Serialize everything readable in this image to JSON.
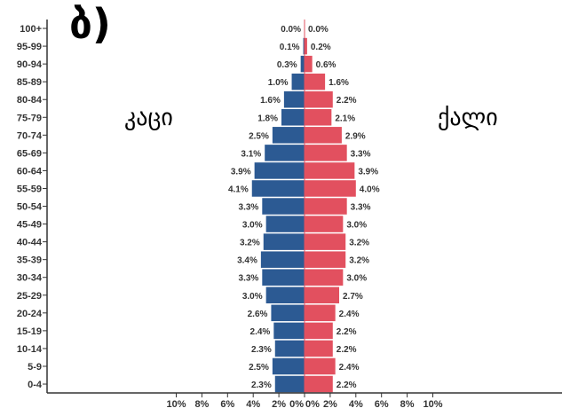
{
  "panel_label": "ბ)",
  "male_label": "კაცი",
  "female_label": "ქალი",
  "chart_data": {
    "type": "bar",
    "orientation": "horizontal-pyramid",
    "categories": [
      "100+",
      "95-99",
      "90-94",
      "85-89",
      "80-84",
      "75-79",
      "70-74",
      "65-69",
      "60-64",
      "55-59",
      "50-54",
      "45-49",
      "40-44",
      "35-39",
      "30-34",
      "25-29",
      "20-24",
      "15-19",
      "10-14",
      "5-9",
      "0-4"
    ],
    "series": [
      {
        "name": "კაცი",
        "color": "#2c5a93",
        "values": [
          0.0,
          0.1,
          0.3,
          1.0,
          1.6,
          1.8,
          2.5,
          3.1,
          3.9,
          4.1,
          3.3,
          3.0,
          3.2,
          3.4,
          3.3,
          3.0,
          2.6,
          2.4,
          2.3,
          2.5,
          2.3
        ]
      },
      {
        "name": "ქალი",
        "color": "#e2505f",
        "values": [
          0.0,
          0.2,
          0.6,
          1.6,
          2.2,
          2.1,
          2.9,
          3.3,
          3.9,
          4.0,
          3.3,
          3.0,
          3.2,
          3.2,
          3.0,
          2.7,
          2.4,
          2.2,
          2.2,
          2.4,
          2.2
        ]
      }
    ],
    "xlim": [
      -10,
      10
    ],
    "x_ticks": [
      "10%",
      "8%",
      "6%",
      "4%",
      "2%",
      "0%",
      "0%",
      "2%",
      "4%",
      "6%",
      "8%",
      "10%"
    ],
    "grid": false
  }
}
